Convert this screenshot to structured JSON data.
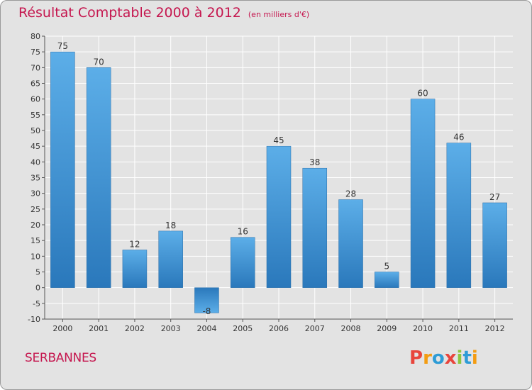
{
  "chart_data": {
    "type": "bar",
    "title": "Résultat Comptable 2000 à 2012",
    "subtitle": "(en milliers d'€)",
    "categories": [
      "2000",
      "2001",
      "2002",
      "2003",
      "2004",
      "2005",
      "2006",
      "2007",
      "2008",
      "2009",
      "2010",
      "2011",
      "2012"
    ],
    "values": [
      75,
      70,
      12,
      18,
      -8,
      16,
      45,
      38,
      28,
      5,
      60,
      46,
      27
    ],
    "ylim": [
      -10,
      80
    ],
    "yticks": [
      -10,
      -5,
      0,
      5,
      10,
      15,
      20,
      25,
      30,
      35,
      40,
      45,
      50,
      55,
      60,
      65,
      70,
      75,
      80
    ],
    "xlabel": "",
    "ylabel": "",
    "grid": true
  },
  "commune": "SERBANNES",
  "logo": {
    "letters": [
      "P",
      "r",
      "o",
      "x",
      "i",
      "t",
      "i"
    ],
    "colors": [
      "#e8453c",
      "#f39c12",
      "#2e9cd6",
      "#e8453c",
      "#8cc63f",
      "#2e9cd6",
      "#f39c12"
    ]
  },
  "colors": {
    "accent": "#c5174f",
    "bar_light": "#5caee8",
    "bar_dark": "#2a78bb"
  }
}
